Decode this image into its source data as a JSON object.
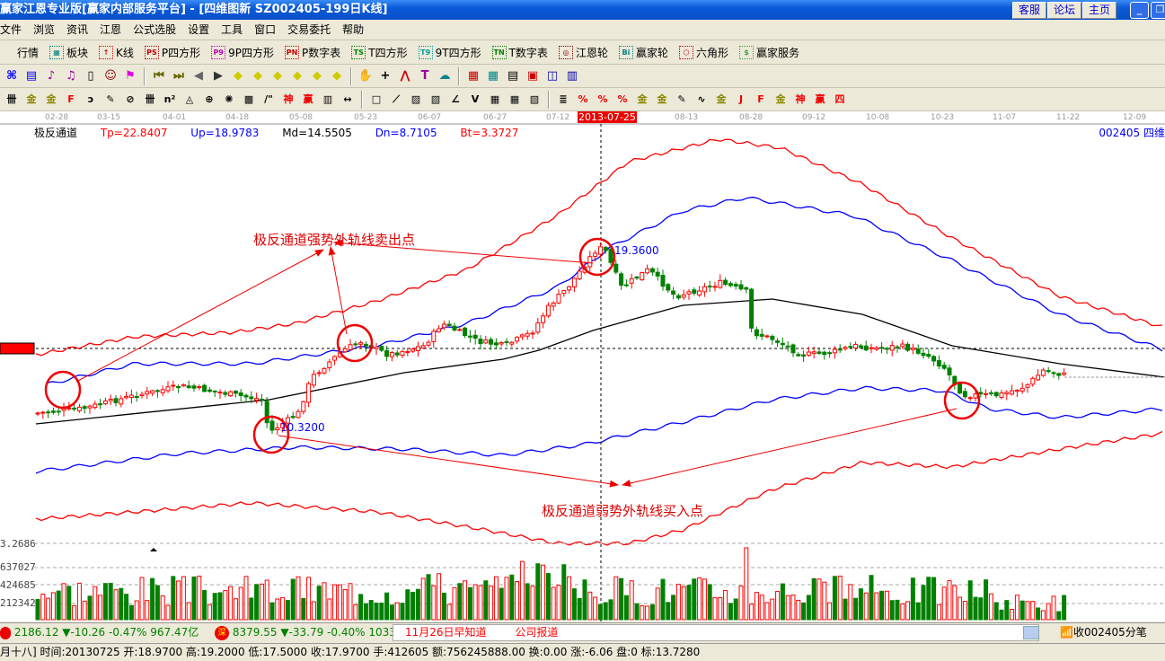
{
  "window": {
    "title": "赢家江恩专业版[赢家内部服务平台] - [四维图新   SZ002405-199日K线]",
    "buttons": [
      "客服",
      "论坛",
      "主页"
    ]
  },
  "menu": [
    "文件",
    "浏览",
    "资讯",
    "江恩",
    "公式选股",
    "设置",
    "工具",
    "窗口",
    "交易委托",
    "帮助"
  ],
  "toolbar1": [
    {
      "icon": "quote-icon",
      "badge": "",
      "label": "行情",
      "color": "#000"
    },
    {
      "icon": "block-icon",
      "badge": "▦",
      "label": "板块",
      "color": "#008080"
    },
    {
      "icon": "kline-icon",
      "badge": "↑",
      "label": "K线",
      "color": "#e00000"
    },
    {
      "icon": "ps-icon",
      "badge": "PS",
      "label": "P四方形",
      "color": "#c00000"
    },
    {
      "icon": "p9-icon",
      "badge": "P9",
      "label": "9P四方形",
      "color": "#c000c0"
    },
    {
      "icon": "pn-icon",
      "badge": "PN",
      "label": "P数字表",
      "color": "#c00000"
    },
    {
      "icon": "ts-icon",
      "badge": "TS",
      "label": "T四方形",
      "color": "#008000"
    },
    {
      "icon": "t9-icon",
      "badge": "T9",
      "label": "9T四方形",
      "color": "#00a0a0"
    },
    {
      "icon": "tn-icon",
      "badge": "TN",
      "label": "T数字表",
      "color": "#008000"
    },
    {
      "icon": "gann-wheel-icon",
      "badge": "◎",
      "label": "江恩轮",
      "color": "#800000"
    },
    {
      "icon": "big-wheel-icon",
      "badge": "Bi",
      "label": "赢家轮",
      "color": "#008080"
    },
    {
      "icon": "hexagon-icon",
      "badge": "⬡",
      "label": "六角形",
      "color": "#c00000"
    },
    {
      "icon": "dollar-icon",
      "badge": "$",
      "label": "赢家服务",
      "color": "#40a040"
    }
  ],
  "toolbar2_icons": [
    "network-icon",
    "clipboard-icon",
    "chart3-icon",
    "chart9-icon",
    "candle-icon",
    "face-icon",
    "flag-icon",
    "first-icon",
    "last-icon",
    "prev-icon",
    "next-icon",
    "left-diamond-icon",
    "right-diamond-icon",
    "expand-icon",
    "shrink-icon",
    "zoom-in-icon",
    "zoom-out-icon",
    "hand-icon",
    "crosshair-icon",
    "line-icon",
    "shirt-icon",
    "brain-icon",
    "calendar-icon",
    "calculator-icon",
    "notes-icon",
    "save-icon",
    "globe-icon",
    "print-icon"
  ],
  "toolbar3_icons": [
    "hash-icon",
    "gold1-icon",
    "gold2-icon",
    "f-icon",
    "spiral-icon",
    "pen-icon",
    "circle-icon",
    "hash2-icon",
    "n2-icon",
    "triangle-icon",
    "target-icon",
    "web-icon",
    "grid-icon",
    "quote-mark-icon",
    "shen-icon",
    "ying-icon",
    "ruler-icon",
    "width-icon",
    "box-icon",
    "fan-icon",
    "fan2-icon",
    "fan3-icon",
    "angle-icon",
    "zigzag-icon",
    "grid2-icon",
    "grid3-icon",
    "lines-icon",
    "table-icon",
    "percent-line-icon",
    "percent-icon",
    "percent2-icon",
    "gold-circle-icon",
    "gold3-icon",
    "pen2-icon",
    "wave-icon",
    "gold4-icon",
    "j-icon",
    "f2-icon",
    "gold5-icon",
    "shen2-icon",
    "ying2-icon",
    "si-icon"
  ],
  "dates": [
    "02-28",
    "03-15",
    "04-01",
    "04-18",
    "05-08",
    "05-23",
    "06-07",
    "06-27",
    "07-12",
    "2013-07-25",
    "08-13",
    "08-28",
    "09-12",
    "10-08",
    "10-23",
    "11-07",
    "11-22",
    "12-09"
  ],
  "indicator": {
    "name": "极反通道",
    "tp": "Tp=22.8407",
    "up": "Up=18.9783",
    "md": "Md=14.5505",
    "dn": "Dn=8.7105",
    "bt": "Bt=3.3727"
  },
  "stock_code": "002405 四维",
  "annotations": {
    "sell": "极反通道强势外轨线卖出点",
    "buy": "极反通道弱势外轨线买入点",
    "high": "19.3600",
    "low": "10.3200"
  },
  "volume_axis": [
    "3.2686",
    "637027",
    "424685",
    "212342"
  ],
  "colors": {
    "up": "#ff0000",
    "down": "#008000",
    "mid": "#000000",
    "band_inner": "#0000ff",
    "band_outer": "#ff0000"
  },
  "index_bar": {
    "sh": "2186.12 ▼-10.26 -0.47% 967.47亿",
    "sz": "8379.55 ▼-33.79 -0.40% 1033.16亿",
    "news1": "11月26日早知道",
    "news2": "公司报道",
    "feed": "收002405分笔"
  },
  "status": "月十八] 时间:20130725 开:18.9700 高:19.2000 低:17.5000 收:17.9700 手:412605 额:756245888.00 换:0.00 涨:-6.06 盘:0 标:13.7280"
}
